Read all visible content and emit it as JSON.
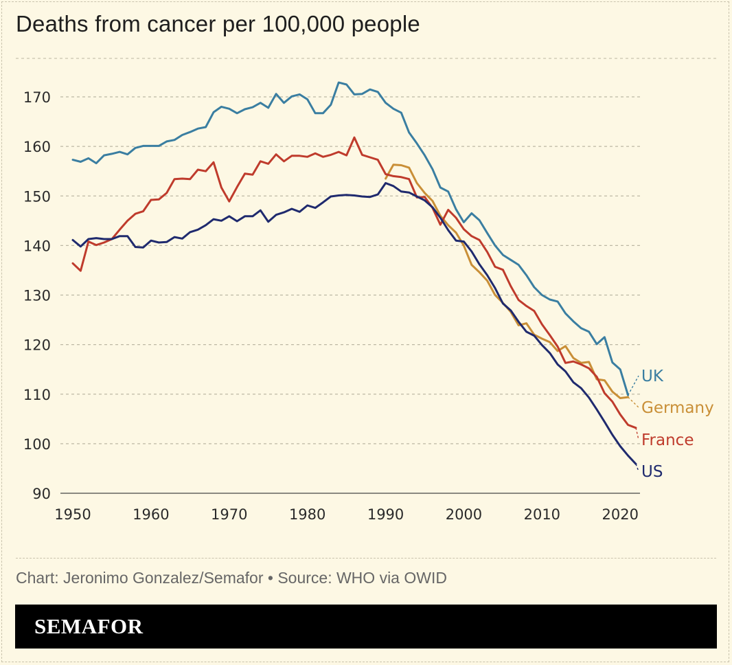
{
  "title": "Deaths from cancer per 100,000 people",
  "source": "Chart: Jeronimo Gonzalez/Semafor • Source: WHO via OWID",
  "brand": "SEMAFOR",
  "chart_data": {
    "type": "line",
    "title": "Deaths from cancer per 100,000 people",
    "xlabel": "",
    "ylabel": "",
    "xlim": [
      1950,
      2022
    ],
    "ylim": [
      90,
      170
    ],
    "xticks": [
      1950,
      1960,
      1970,
      1980,
      1990,
      2000,
      2010,
      2020
    ],
    "yticks": [
      90,
      100,
      110,
      120,
      130,
      140,
      150,
      160,
      170
    ],
    "grid": "horizontal dashed",
    "legend": "direct labels at right end of lines",
    "series": [
      {
        "name": "UK",
        "color": "#3a7ea1",
        "x": [
          1950,
          1951,
          1952,
          1953,
          1954,
          1955,
          1956,
          1957,
          1958,
          1959,
          1960,
          1961,
          1962,
          1963,
          1964,
          1965,
          1966,
          1967,
          1968,
          1969,
          1970,
          1971,
          1972,
          1973,
          1974,
          1975,
          1976,
          1977,
          1978,
          1979,
          1980,
          1981,
          1982,
          1983,
          1984,
          1985,
          1986,
          1987,
          1988,
          1989,
          1990,
          1991,
          1992,
          1993,
          1994,
          1995,
          1996,
          1997,
          1998,
          1999,
          2000,
          2001,
          2002,
          2003,
          2004,
          2005,
          2006,
          2007,
          2008,
          2009,
          2010,
          2011,
          2012,
          2013,
          2014,
          2015,
          2016,
          2017,
          2018,
          2019,
          2020,
          2021
        ],
        "values": [
          157.3,
          156.9,
          157.6,
          156.6,
          158.2,
          158.5,
          158.9,
          158.4,
          159.7,
          160.1,
          160.1,
          160.1,
          161,
          161.3,
          162.3,
          162.9,
          163.6,
          163.9,
          166.9,
          168,
          167.6,
          166.7,
          167.5,
          167.9,
          168.8,
          167.8,
          170.6,
          168.8,
          170.1,
          170.5,
          169.5,
          166.7,
          166.7,
          168.4,
          172.9,
          172.5,
          170.5,
          170.6,
          171.5,
          171,
          168.8,
          167.6,
          166.8,
          162.8,
          160.6,
          158.2,
          155.4,
          151.7,
          150.9,
          147.3,
          144.7,
          146.5,
          145.1,
          142.5,
          140,
          138.1,
          137.1,
          136.1,
          134,
          131.6,
          130,
          129.1,
          128.7,
          126.3,
          124.7,
          123.3,
          122.6,
          120.1,
          121.5,
          116.4,
          115,
          109.8
        ]
      },
      {
        "name": "Germany",
        "color": "#c98f37",
        "x": [
          1990,
          1991,
          1992,
          1993,
          1994,
          1995,
          1996,
          1997,
          1998,
          1999,
          2000,
          2001,
          2002,
          2003,
          2004,
          2005,
          2006,
          2007,
          2008,
          2009,
          2010,
          2011,
          2012,
          2013,
          2014,
          2015,
          2016,
          2017,
          2018,
          2019,
          2020,
          2021
        ],
        "values": [
          153.5,
          156.3,
          156.2,
          155.7,
          152.6,
          150.6,
          149,
          146,
          144.1,
          142.6,
          140,
          136.1,
          134.6,
          132.9,
          130,
          128.4,
          126.6,
          123.9,
          124.3,
          122,
          121.2,
          120.5,
          118.7,
          119.7,
          117.3,
          116.3,
          116.5,
          113,
          112.8,
          110.5,
          109.2,
          109.4
        ]
      },
      {
        "name": "France",
        "color": "#bf3b2c",
        "x": [
          1950,
          1951,
          1952,
          1953,
          1954,
          1955,
          1956,
          1957,
          1958,
          1959,
          1960,
          1961,
          1962,
          1963,
          1964,
          1965,
          1966,
          1967,
          1968,
          1969,
          1970,
          1971,
          1972,
          1973,
          1974,
          1975,
          1976,
          1977,
          1978,
          1979,
          1980,
          1981,
          1982,
          1983,
          1984,
          1985,
          1986,
          1987,
          1988,
          1989,
          1990,
          1991,
          1992,
          1993,
          1994,
          1995,
          1996,
          1997,
          1998,
          1999,
          2000,
          2001,
          2002,
          2003,
          2004,
          2005,
          2006,
          2007,
          2008,
          2009,
          2010,
          2011,
          2012,
          2013,
          2014,
          2015,
          2016,
          2017,
          2018,
          2019,
          2020,
          2021,
          2022
        ],
        "values": [
          136.4,
          134.9,
          140.8,
          140.1,
          140.6,
          141.3,
          143.2,
          145,
          146.4,
          146.9,
          149.2,
          149.3,
          150.6,
          153.4,
          153.5,
          153.4,
          155.3,
          155,
          156.8,
          151.7,
          148.9,
          151.8,
          154.5,
          154.3,
          157,
          156.5,
          158.4,
          157,
          158.1,
          158.1,
          157.9,
          158.6,
          157.9,
          158.3,
          158.9,
          158.2,
          161.8,
          158.3,
          157.8,
          157.3,
          154.4,
          154,
          153.8,
          153.4,
          149.7,
          149.8,
          147.6,
          144.2,
          147.2,
          145.6,
          143.3,
          141.9,
          141.1,
          138.7,
          135.7,
          135.1,
          131.8,
          129,
          127.8,
          126.8,
          124.1,
          121.9,
          119.6,
          116.3,
          116.6,
          116,
          115.2,
          113.5,
          110.2,
          108.5,
          105.9,
          103.8,
          103.2
        ]
      },
      {
        "name": "US",
        "color": "#1f2a6e",
        "x": [
          1950,
          1951,
          1952,
          1953,
          1954,
          1955,
          1956,
          1957,
          1958,
          1959,
          1960,
          1961,
          1962,
          1963,
          1964,
          1965,
          1966,
          1967,
          1968,
          1969,
          1970,
          1971,
          1972,
          1973,
          1974,
          1975,
          1976,
          1977,
          1978,
          1979,
          1980,
          1981,
          1982,
          1983,
          1984,
          1985,
          1986,
          1987,
          1988,
          1989,
          1990,
          1991,
          1992,
          1993,
          1994,
          1995,
          1996,
          1997,
          1998,
          1999,
          2000,
          2001,
          2002,
          2003,
          2004,
          2005,
          2006,
          2007,
          2008,
          2009,
          2010,
          2011,
          2012,
          2013,
          2014,
          2015,
          2016,
          2017,
          2018,
          2019,
          2020,
          2021,
          2022
        ],
        "values": [
          141.1,
          139.8,
          141.3,
          141.5,
          141.3,
          141.3,
          141.9,
          141.9,
          139.7,
          139.6,
          141,
          140.6,
          140.7,
          141.7,
          141.4,
          142.7,
          143.2,
          144.1,
          145.3,
          145,
          145.9,
          144.9,
          145.9,
          145.9,
          147.1,
          144.8,
          146.2,
          146.7,
          147.4,
          146.8,
          148.1,
          147.6,
          148.7,
          149.9,
          150.1,
          150.2,
          150.1,
          149.9,
          149.8,
          150.3,
          152.6,
          152,
          150.9,
          150.7,
          149.9,
          149.1,
          147.7,
          145.6,
          143.1,
          141,
          140.8,
          138.8,
          136.2,
          134,
          131.4,
          128.3,
          126.9,
          124.6,
          122.6,
          121.8,
          119.9,
          118.3,
          116,
          114.6,
          112.4,
          111.2,
          109.3,
          106.9,
          104.4,
          101.8,
          99.5,
          97.6,
          95.9
        ]
      }
    ]
  }
}
